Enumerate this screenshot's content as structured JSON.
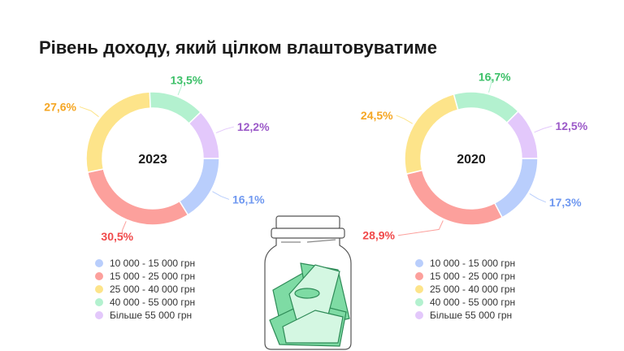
{
  "title": "Рівень доходу, який цілком влаштовуватиме",
  "categories": [
    "10 000 - 15 000 грн",
    "15 000 - 25 000 грн",
    "25 000 - 40 000 грн",
    "40 000 - 55 000 грн",
    "Більше 55 000 грн"
  ],
  "colors": {
    "slice": [
      "#b9cefc",
      "#fca09c",
      "#fde48a",
      "#b3f1cf",
      "#e3c8fb"
    ],
    "label": [
      "#6f98f0",
      "#f0494a",
      "#f5a623",
      "#3cc068",
      "#9b59c8"
    ]
  },
  "chart_data": [
    {
      "type": "pie",
      "title": "2023",
      "categories": [
        "10 000 - 15 000 грн",
        "15 000 - 25 000 грн",
        "25 000 - 40 000 грн",
        "40 000 - 55 000 грн",
        "Більше 55 000 грн"
      ],
      "values": [
        16.1,
        30.5,
        27.6,
        13.5,
        12.2
      ],
      "labels": [
        "16,1%",
        "30,5%",
        "27,6%",
        "13,5%",
        "12,2%"
      ],
      "donut": true,
      "legend": "bottom"
    },
    {
      "type": "pie",
      "title": "2020",
      "categories": [
        "10 000 - 15 000 грн",
        "15 000 - 25 000 грн",
        "25 000 - 40 000 грн",
        "40 000 - 55 000 грн",
        "Більше 55 000 грн"
      ],
      "values": [
        17.3,
        28.9,
        24.5,
        16.7,
        12.5
      ],
      "labels": [
        "17,3%",
        "28,9%",
        "24,5%",
        "16,7%",
        "12,5%"
      ],
      "donut": true,
      "legend": "bottom"
    }
  ],
  "illustration": "jar-of-money-icon"
}
